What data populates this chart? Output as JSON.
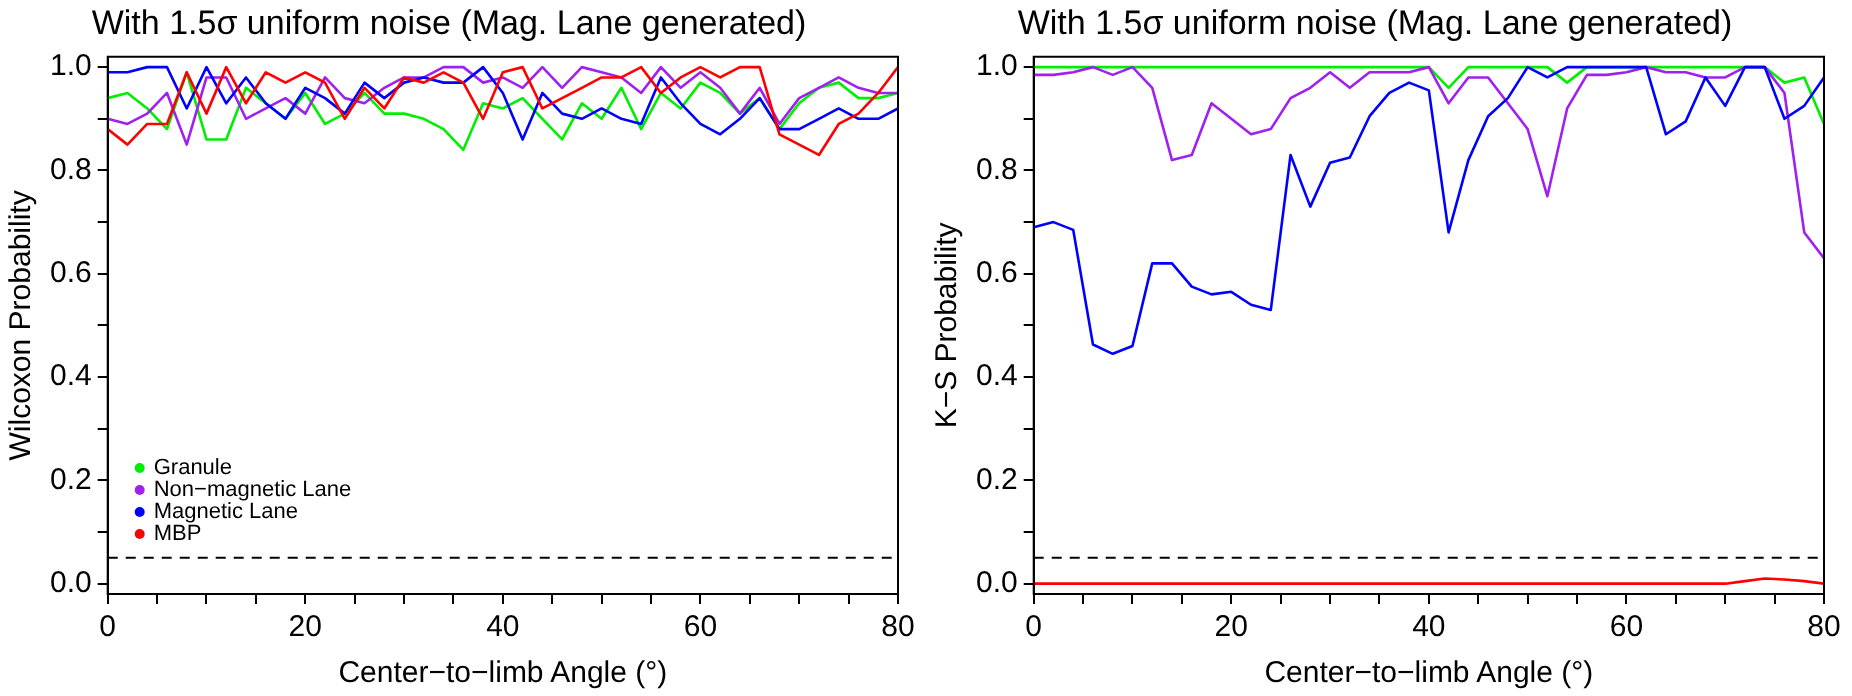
{
  "chart_data": [
    {
      "type": "line",
      "title": "With 1.5σ uniform noise (Mag. Lane generated)",
      "xlabel": "Center−to−limb Angle (°)",
      "ylabel": "Wilcoxon Probability",
      "x": [
        0,
        2,
        4,
        6,
        8,
        10,
        12,
        14,
        16,
        18,
        20,
        22,
        24,
        26,
        28,
        30,
        32,
        34,
        36,
        38,
        40,
        42,
        44,
        46,
        48,
        50,
        52,
        54,
        56,
        58,
        60,
        62,
        64,
        66,
        68,
        70,
        72,
        74,
        76,
        78,
        80
      ],
      "series": [
        {
          "name": "Granule",
          "color": "#00ee00",
          "values": [
            0.94,
            0.95,
            0.92,
            0.88,
            0.99,
            0.86,
            0.86,
            0.96,
            0.93,
            0.9,
            0.95,
            0.89,
            0.91,
            0.95,
            0.91,
            0.91,
            0.9,
            0.88,
            0.84,
            0.93,
            0.92,
            0.94,
            0.9,
            0.86,
            0.93,
            0.9,
            0.96,
            0.88,
            0.95,
            0.92,
            0.97,
            0.95,
            0.91,
            0.94,
            0.88,
            0.93,
            0.96,
            0.97,
            0.94,
            0.94,
            0.95
          ]
        },
        {
          "name": "Non−magnetic Lane",
          "color": "#a020f0",
          "values": [
            0.9,
            0.89,
            0.91,
            0.95,
            0.85,
            0.98,
            0.98,
            0.9,
            0.92,
            0.94,
            0.91,
            0.98,
            0.94,
            0.93,
            0.96,
            0.98,
            0.98,
            1.0,
            1.0,
            0.97,
            0.98,
            0.96,
            1.0,
            0.96,
            1.0,
            0.99,
            0.98,
            0.95,
            1.0,
            0.96,
            0.99,
            0.96,
            0.91,
            0.96,
            0.89,
            0.94,
            0.96,
            0.98,
            0.96,
            0.95,
            0.95
          ]
        },
        {
          "name": "Magnetic Lane",
          "color": "#0000ff",
          "values": [
            0.99,
            0.99,
            1.0,
            1.0,
            0.92,
            1.0,
            0.93,
            0.98,
            0.93,
            0.9,
            0.96,
            0.94,
            0.91,
            0.97,
            0.94,
            0.97,
            0.98,
            0.97,
            0.97,
            1.0,
            0.95,
            0.86,
            0.95,
            0.91,
            0.9,
            0.92,
            0.9,
            0.89,
            0.98,
            0.93,
            0.89,
            0.87,
            0.9,
            0.94,
            0.88,
            0.88,
            0.9,
            0.92,
            0.9,
            0.9,
            0.92
          ]
        },
        {
          "name": "MBP",
          "color": "#ff0000",
          "values": [
            0.88,
            0.85,
            0.89,
            0.89,
            0.99,
            0.91,
            1.0,
            0.93,
            0.99,
            0.97,
            0.99,
            0.97,
            0.9,
            0.96,
            0.92,
            0.98,
            0.97,
            0.99,
            0.97,
            0.9,
            0.99,
            1.0,
            0.92,
            0.94,
            0.96,
            0.98,
            0.98,
            1.0,
            0.95,
            0.98,
            1.0,
            0.98,
            1.0,
            1.0,
            0.87,
            0.85,
            0.83,
            0.89,
            0.91,
            0.95,
            1.0
          ]
        }
      ],
      "xlim": [
        0,
        80
      ],
      "xticks": [
        0,
        {
          "value": 5,
          "label": null
        },
        {
          "value": 10,
          "label": null
        },
        {
          "value": 15,
          "label": null
        },
        20,
        {
          "value": 25,
          "label": null
        },
        {
          "value": 30,
          "label": null
        },
        {
          "value": 35,
          "label": null
        },
        40,
        {
          "value": 45,
          "label": null
        },
        {
          "value": 50,
          "label": null
        },
        {
          "value": 55,
          "label": null
        },
        60,
        {
          "value": 65,
          "label": null
        },
        {
          "value": 70,
          "label": null
        },
        {
          "value": 75,
          "label": null
        },
        80
      ],
      "ylim": [
        -0.02,
        1.02
      ],
      "yticks": [
        {
          "value": 0,
          "label": "0.0"
        },
        {
          "value": 0.1,
          "label": null
        },
        {
          "value": 0.2,
          "label": "0.2"
        },
        {
          "value": 0.3,
          "label": null
        },
        {
          "value": 0.4,
          "label": "0.4"
        },
        {
          "value": 0.5,
          "label": null
        },
        {
          "value": 0.6,
          "label": "0.6"
        },
        {
          "value": 0.7,
          "label": null
        },
        {
          "value": 0.8,
          "label": "0.8"
        },
        {
          "value": 0.9,
          "label": null
        },
        {
          "value": 1.0,
          "label": "1.0"
        }
      ],
      "ref_lines": [
        {
          "axis": "y",
          "value": 0.05,
          "color": "#000000",
          "line_style": "dashed"
        }
      ],
      "legend": "bottom left"
    },
    {
      "type": "line",
      "title": "With 1.5σ uniform noise (Mag. Lane generated)",
      "xlabel": "Center−to−limb Angle (°)",
      "ylabel": "K−S Probability",
      "x": [
        0,
        2,
        4,
        6,
        8,
        10,
        12,
        14,
        16,
        18,
        20,
        22,
        24,
        26,
        28,
        30,
        32,
        34,
        36,
        38,
        40,
        42,
        44,
        46,
        48,
        50,
        52,
        54,
        56,
        58,
        60,
        62,
        64,
        66,
        68,
        70,
        72,
        74,
        76,
        78,
        80
      ],
      "series": [
        {
          "color": "#00ee00",
          "values": [
            1.0,
            1.0,
            1.0,
            1.0,
            1.0,
            1.0,
            1.0,
            1.0,
            1.0,
            1.0,
            1.0,
            1.0,
            1.0,
            1.0,
            1.0,
            1.0,
            1.0,
            1.0,
            1.0,
            1.0,
            1.0,
            0.96,
            1.0,
            1.0,
            1.0,
            1.0,
            1.0,
            0.97,
            1.0,
            1.0,
            1.0,
            1.0,
            1.0,
            1.0,
            1.0,
            1.0,
            1.0,
            1.0,
            0.97,
            0.98,
            0.89
          ]
        },
        {
          "color": "#a020f0",
          "values": [
            0.985,
            0.985,
            0.99,
            1.0,
            0.985,
            1.0,
            0.96,
            0.82,
            0.83,
            0.93,
            0.9,
            0.87,
            0.88,
            0.94,
            0.96,
            0.99,
            0.96,
            0.99,
            0.99,
            0.99,
            1.0,
            0.93,
            0.98,
            0.98,
            0.93,
            0.88,
            0.75,
            0.92,
            0.985,
            0.985,
            0.99,
            1.0,
            0.99,
            0.99,
            0.98,
            0.98,
            1.0,
            1.0,
            0.95,
            0.68,
            0.63
          ]
        },
        {
          "color": "#0000ff",
          "values": [
            0.69,
            0.7,
            0.685,
            0.463,
            0.445,
            0.46,
            0.62,
            0.62,
            0.575,
            0.56,
            0.565,
            0.54,
            0.53,
            0.83,
            0.73,
            0.815,
            0.825,
            0.905,
            0.95,
            0.97,
            0.955,
            0.68,
            0.82,
            0.905,
            0.94,
            1.0,
            0.98,
            1.0,
            1.0,
            1.0,
            1.0,
            1.0,
            0.87,
            0.895,
            0.98,
            0.925,
            1.0,
            1.0,
            0.9,
            0.925,
            0.98
          ]
        },
        {
          "color": "#ff0000",
          "values": [
            0.0,
            0.0,
            0.0,
            0.0,
            0.0,
            0.0,
            0.0,
            0.0,
            0.0,
            0.0,
            0.0,
            0.0,
            0.0,
            0.0,
            0.0,
            0.0,
            0.0,
            0.0,
            0.0,
            0.0,
            0.0,
            0.0,
            0.0,
            0.0,
            0.0,
            0.0,
            0.0,
            0.0,
            0.0,
            0.0,
            0.0,
            0.0,
            0.0,
            0.0,
            0.0,
            0.0,
            0.005,
            0.01,
            0.008,
            0.005,
            0.0
          ]
        }
      ],
      "xlim": [
        0,
        80
      ],
      "xticks": [
        0,
        {
          "value": 5,
          "label": null
        },
        {
          "value": 10,
          "label": null
        },
        {
          "value": 15,
          "label": null
        },
        20,
        {
          "value": 25,
          "label": null
        },
        {
          "value": 30,
          "label": null
        },
        {
          "value": 35,
          "label": null
        },
        40,
        {
          "value": 45,
          "label": null
        },
        {
          "value": 50,
          "label": null
        },
        {
          "value": 55,
          "label": null
        },
        60,
        {
          "value": 65,
          "label": null
        },
        {
          "value": 70,
          "label": null
        },
        {
          "value": 75,
          "label": null
        },
        80
      ],
      "ylim": [
        -0.02,
        1.02
      ],
      "yticks": [
        {
          "value": 0,
          "label": "0.0"
        },
        {
          "value": 0.1,
          "label": null
        },
        {
          "value": 0.2,
          "label": "0.2"
        },
        {
          "value": 0.3,
          "label": null
        },
        {
          "value": 0.4,
          "label": "0.4"
        },
        {
          "value": 0.5,
          "label": null
        },
        {
          "value": 0.6,
          "label": "0.6"
        },
        {
          "value": 0.7,
          "label": null
        },
        {
          "value": 0.8,
          "label": "0.8"
        },
        {
          "value": 0.9,
          "label": null
        },
        {
          "value": 1.0,
          "label": "1.0"
        }
      ],
      "ref_lines": [
        {
          "axis": "y",
          "value": 0.05,
          "color": "#000000",
          "line_style": "dashed"
        }
      ]
    }
  ]
}
